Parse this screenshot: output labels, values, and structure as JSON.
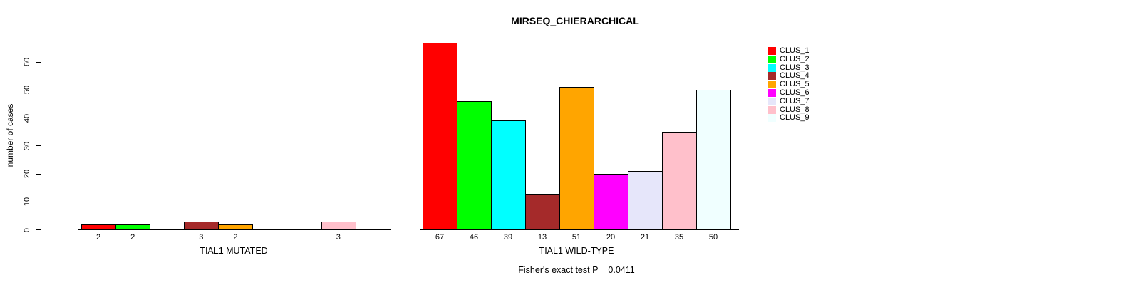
{
  "title": "MIRSEQ_CHIERARCHICAL",
  "subtitle": "Fisher's exact test P = 0.0411",
  "ylabel": "number of cases",
  "y_axis": {
    "ticks": [
      0,
      10,
      20,
      30,
      40,
      50,
      60
    ],
    "range": [
      0,
      60
    ]
  },
  "legend": {
    "position": "right",
    "entries": [
      {
        "label": "CLUS_1",
        "color": "#FF0000"
      },
      {
        "label": "CLUS_2",
        "color": "#00FF00"
      },
      {
        "label": "CLUS_3",
        "color": "#00FFFF"
      },
      {
        "label": "CLUS_4",
        "color": "#A52A2A"
      },
      {
        "label": "CLUS_5",
        "color": "#FFA500"
      },
      {
        "label": "CLUS_6",
        "color": "#FF00FF"
      },
      {
        "label": "CLUS_7",
        "color": "#E6E6FA"
      },
      {
        "label": "CLUS_8",
        "color": "#FFC0CB"
      },
      {
        "label": "CLUS_9",
        "color": "#F0FFFF"
      }
    ]
  },
  "chart_data": [
    {
      "type": "bar",
      "title": "MIRSEQ_CHIERARCHICAL",
      "xlabel": "TIAL1 MUTATED",
      "ylabel": "number of cases",
      "ylim": [
        0,
        60
      ],
      "grid": false,
      "categories": [
        "CLUS_1",
        "CLUS_2",
        "CLUS_3",
        "CLUS_4",
        "CLUS_5",
        "CLUS_6",
        "CLUS_7",
        "CLUS_8",
        "CLUS_9"
      ],
      "values": [
        2,
        2,
        0,
        3,
        2,
        0,
        0,
        3,
        0
      ],
      "bar_labels": [
        "2",
        "2",
        "",
        "3",
        "2",
        "",
        "",
        "3",
        ""
      ],
      "colors": [
        "#FF0000",
        "#00FF00",
        "#00FFFF",
        "#A52A2A",
        "#FFA500",
        "#FF00FF",
        "#E6E6FA",
        "#FFC0CB",
        "#F0FFFF"
      ]
    },
    {
      "type": "bar",
      "title": "MIRSEQ_CHIERARCHICAL",
      "xlabel": "TIAL1 WILD-TYPE",
      "ylabel": "number of cases",
      "ylim": [
        0,
        60
      ],
      "grid": false,
      "categories": [
        "CLUS_1",
        "CLUS_2",
        "CLUS_3",
        "CLUS_4",
        "CLUS_5",
        "CLUS_6",
        "CLUS_7",
        "CLUS_8",
        "CLUS_9"
      ],
      "values": [
        67,
        46,
        39,
        13,
        51,
        20,
        21,
        35,
        50
      ],
      "bar_labels": [
        "67",
        "46",
        "39",
        "13",
        "51",
        "20",
        "21",
        "35",
        "50"
      ],
      "colors": [
        "#FF0000",
        "#00FF00",
        "#00FFFF",
        "#A52A2A",
        "#FFA500",
        "#FF00FF",
        "#E6E6FA",
        "#FFC0CB",
        "#F0FFFF"
      ]
    }
  ]
}
